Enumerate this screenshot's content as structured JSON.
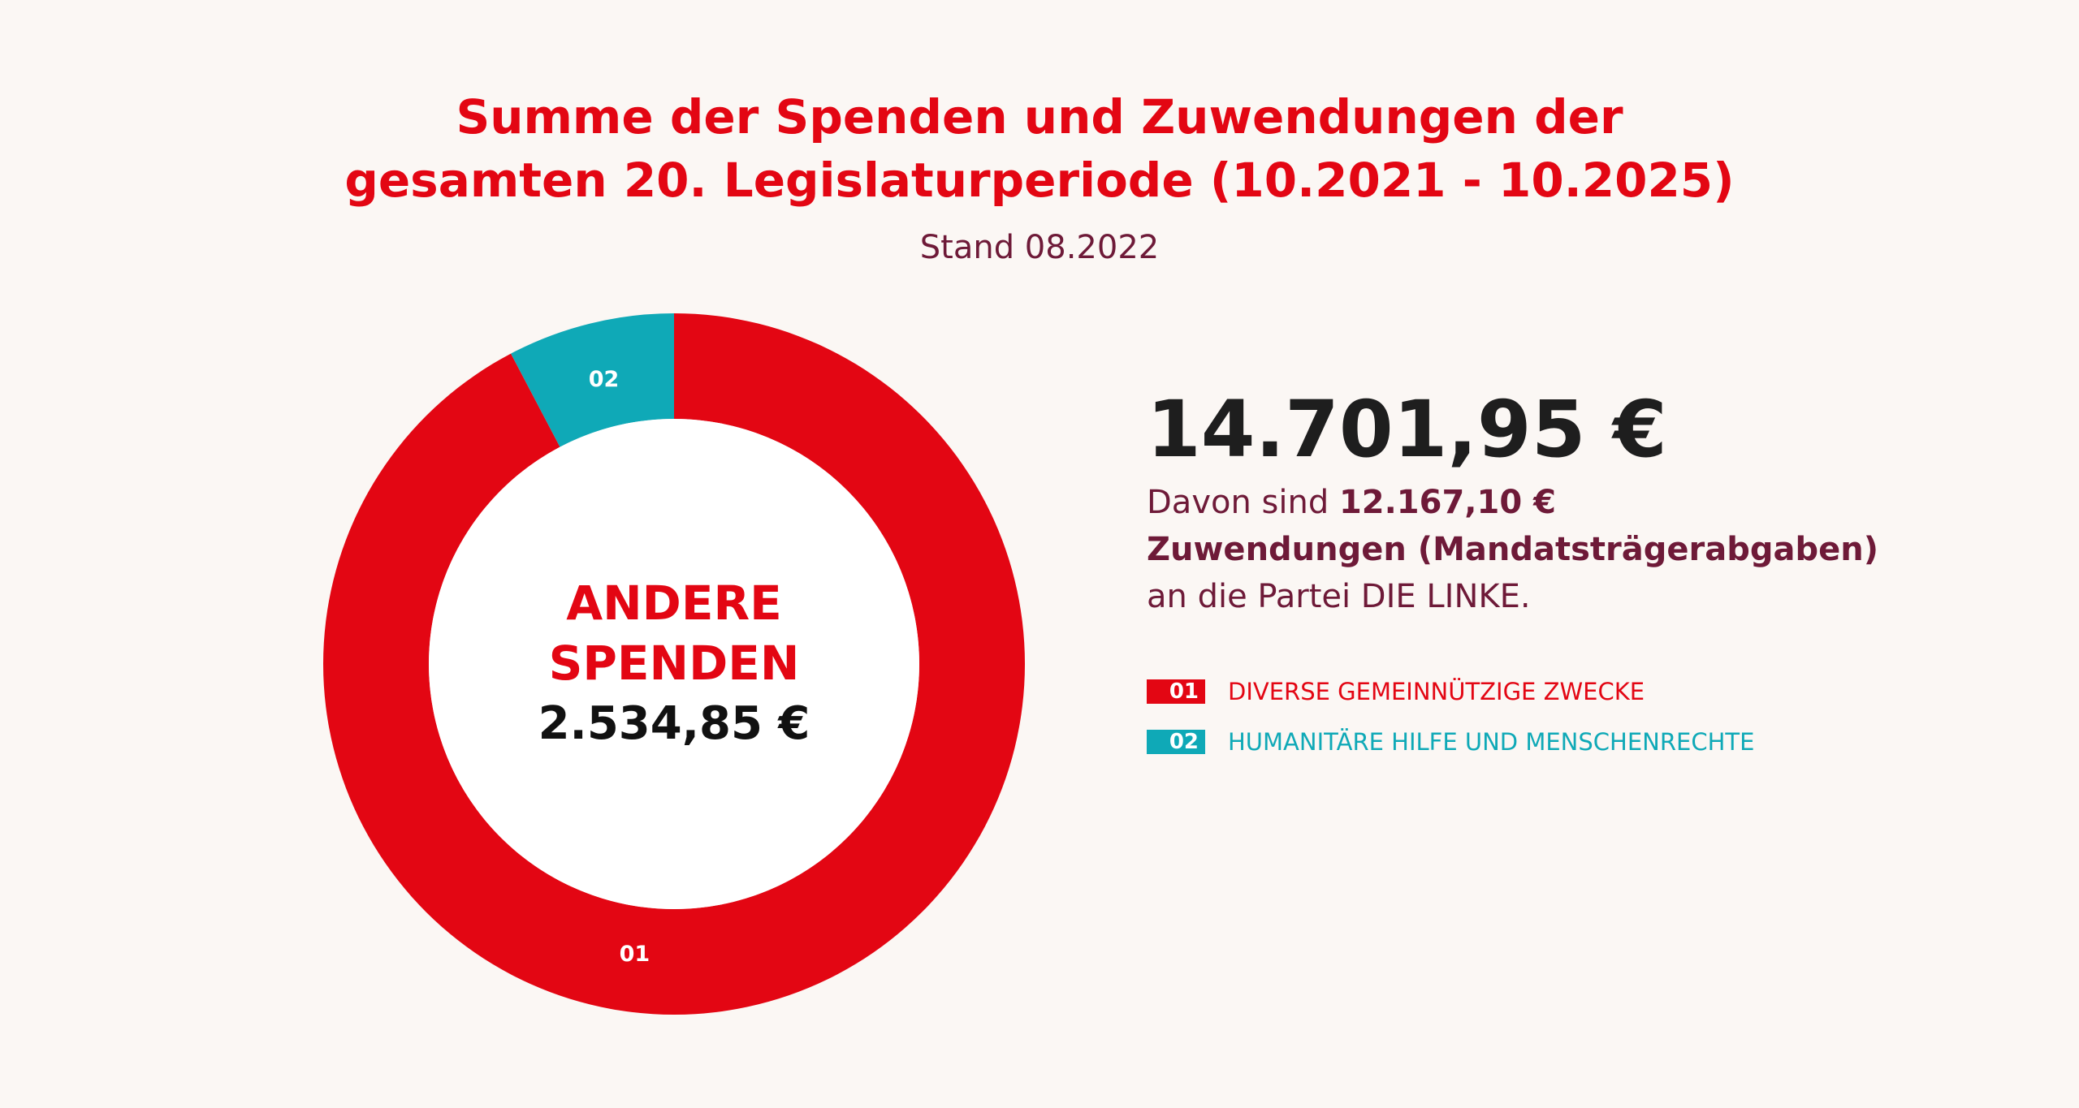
{
  "title": {
    "line1": "Summe der Spenden und Zuwendungen der",
    "line2": "gesamten 20. Legislaturperiode (10.2021 - 10.2025)"
  },
  "subtitle": "Stand 08.2022",
  "center": {
    "name_line1": "ANDERE",
    "name_line2": "SPENDEN",
    "value": "2.534,85 €"
  },
  "summary": {
    "total": "14.701,95 €",
    "desc_prefix": "Davon sind ",
    "desc_amount": "12.167,10 €",
    "desc_bold_line": "Zuwendungen (Mandatsträgerabgaben)",
    "desc_suffix": "an die Partei DIE LINKE."
  },
  "colors": {
    "red": "#e30613",
    "teal": "#0fa9b7",
    "dark_red": "#6e1a38",
    "background": "#fbf7f4"
  },
  "chart_data": {
    "type": "pie",
    "variant": "donut",
    "title": "Summe der Spenden und Zuwendungen der gesamten 20. Legislaturperiode (10.2021 - 10.2025)",
    "categories": [
      "01",
      "02"
    ],
    "labels": [
      "DIVERSE GEMEINNÜTZIGE ZWECKE",
      "HUMANITÄRE HILFE UND MENSCHENRECHTE"
    ],
    "values": [
      92.3,
      7.7
    ],
    "colors": [
      "#e30613",
      "#0fa9b7"
    ],
    "start_angle_deg": 0,
    "direction": "clockwise",
    "legend_position": "right"
  }
}
